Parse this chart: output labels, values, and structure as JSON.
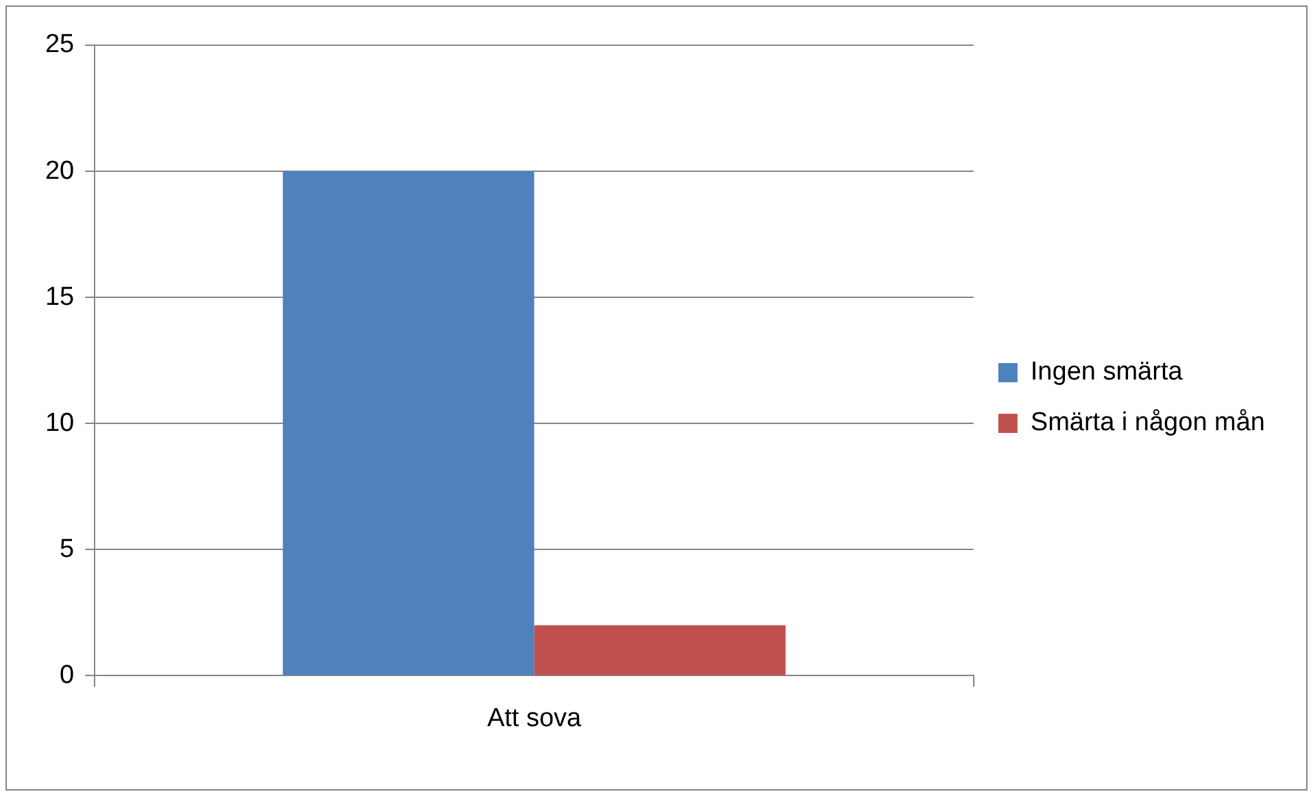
{
  "chart_data": {
    "type": "bar",
    "categories": [
      "Att sova"
    ],
    "series": [
      {
        "name": "Ingen smärta",
        "color": "#4f81bd",
        "values": [
          20
        ]
      },
      {
        "name": "Smärta i någon mån",
        "color": "#c0504d",
        "values": [
          2
        ]
      }
    ],
    "ylim": [
      0,
      25
    ],
    "yticks": [
      0,
      5,
      10,
      15,
      20,
      25
    ],
    "grid": "y",
    "legend": "right"
  }
}
